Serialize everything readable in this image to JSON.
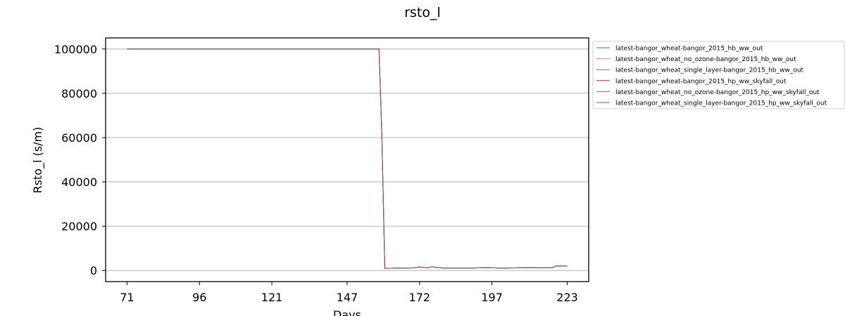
{
  "chart_data": {
    "type": "line",
    "title": "rsto_l",
    "xlabel": "Days",
    "ylabel": "Rsto_l (s/m)",
    "xlim": [
      63.6,
      230.4
    ],
    "ylim": [
      -5000,
      105000
    ],
    "xticks": [
      71,
      96,
      121,
      147,
      172,
      197,
      223
    ],
    "xtick_labels": [
      "71",
      "96",
      "121",
      "147",
      "172",
      "197",
      "223"
    ],
    "yticks": [
      0,
      20000,
      40000,
      60000,
      80000,
      100000
    ],
    "ytick_labels": [
      "0",
      "20000",
      "40000",
      "60000",
      "80000",
      "100000"
    ],
    "grid": "horizontal",
    "legend_position": "outside-right",
    "series_colors": [
      "#1f77b4",
      "#ff7f0e",
      "#2ca02c",
      "#d62728",
      "#9467bd",
      "#8c564b"
    ],
    "series": [
      {
        "name": "latest-bangor_wheat-bangor_2015_hb_ww_out",
        "x": [
          71,
          158,
          159,
          160,
          165,
          170,
          172,
          175,
          176,
          180,
          185,
          190,
          195,
          200,
          205,
          210,
          215,
          218,
          219,
          223
        ],
        "y": [
          100000,
          100000,
          60000,
          1000,
          1100,
          1200,
          1600,
          1200,
          1700,
          1100,
          1200,
          1100,
          1300,
          1100,
          1200,
          1300,
          1200,
          1300,
          2000,
          2000
        ]
      },
      {
        "name": "latest-bangor_wheat_no_ozone-bangor_2015_hb_ww_out",
        "x": [
          71,
          158,
          159,
          160,
          165,
          170,
          172,
          175,
          176,
          180,
          185,
          190,
          195,
          200,
          205,
          210,
          215,
          218,
          219,
          223
        ],
        "y": [
          100000,
          100000,
          60000,
          1000,
          1100,
          1200,
          1600,
          1200,
          1700,
          1100,
          1200,
          1100,
          1300,
          1100,
          1200,
          1300,
          1200,
          1300,
          2000,
          2000
        ]
      },
      {
        "name": "latest-bangor_wheat_single_layer-bangor_2015_hb_ww_out",
        "x": [
          71,
          158,
          159,
          160,
          165,
          170,
          172,
          175,
          176,
          180,
          185,
          190,
          195,
          200,
          205,
          210,
          215,
          218,
          219,
          223
        ],
        "y": [
          100000,
          100000,
          60000,
          1000,
          1100,
          1200,
          1600,
          1200,
          1700,
          1100,
          1200,
          1100,
          1300,
          1100,
          1200,
          1300,
          1200,
          1300,
          2000,
          2000
        ]
      },
      {
        "name": "latest-bangor_wheat-bangor_2015_hp_ww_skyfall_out",
        "x": [
          71,
          158,
          159,
          160,
          165,
          170,
          172,
          175,
          176,
          180,
          185,
          190,
          195,
          200,
          205,
          210,
          215,
          218,
          219,
          223
        ],
        "y": [
          100000,
          100000,
          60000,
          1000,
          1100,
          1200,
          1600,
          1200,
          1700,
          1100,
          1200,
          1100,
          1300,
          1100,
          1200,
          1300,
          1200,
          1300,
          2000,
          2000
        ]
      },
      {
        "name": "latest-bangor_wheat_no_ozone-bangor_2015_hp_ww_skyfall_out",
        "x": [
          71,
          158,
          159,
          160,
          165,
          170,
          172,
          175,
          176,
          180,
          185,
          190,
          195,
          200,
          205,
          210,
          215,
          218,
          219,
          223
        ],
        "y": [
          100000,
          100000,
          60000,
          1000,
          1100,
          1200,
          1600,
          1200,
          1700,
          1100,
          1200,
          1100,
          1300,
          1100,
          1200,
          1300,
          1200,
          1300,
          2000,
          2000
        ]
      },
      {
        "name": "latest-bangor_wheat_single_layer-bangor_2015_hp_ww_skyfall_out",
        "x": [
          71,
          158,
          159,
          160,
          165,
          170,
          172,
          175,
          176,
          180,
          185,
          190,
          195,
          200,
          205,
          210,
          215,
          218,
          219,
          223
        ],
        "y": [
          100000,
          100000,
          60000,
          1000,
          1100,
          1200,
          1600,
          1200,
          1700,
          1100,
          1200,
          1100,
          1300,
          1100,
          1200,
          1300,
          1200,
          1300,
          2000,
          2000
        ]
      }
    ]
  }
}
